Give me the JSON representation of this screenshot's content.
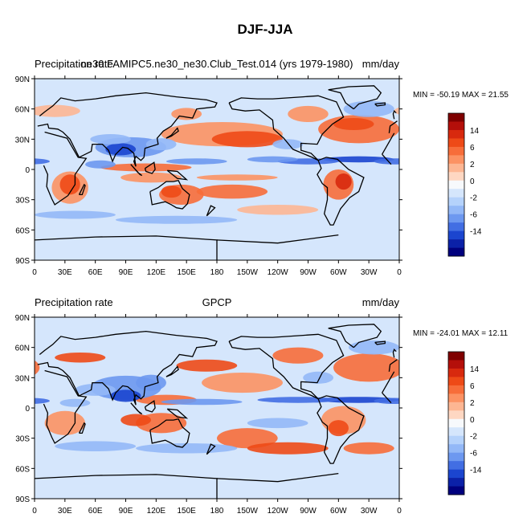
{
  "figure": {
    "title": "DJF-JJA"
  },
  "chart_data": [
    {
      "type": "heatmap",
      "left_title": "Precipitation rate",
      "center_title": "ne30 FAMIPC5.ne30_ne30.Club_Test.014 (yrs 1979-1980)",
      "units": "mm/day",
      "min_max_text": "MIN = -50.19 MAX =  21.55",
      "x_ticks": [
        "0",
        "30E",
        "60E",
        "90E",
        "120E",
        "150E",
        "180",
        "150W",
        "120W",
        "90W",
        "60W",
        "30W",
        "0"
      ],
      "y_ticks": [
        "90N",
        "60N",
        "30N",
        "0",
        "30S",
        "60S",
        "90S"
      ],
      "colorbar_labels": [
        "14",
        "6",
        "2",
        "0",
        "-2",
        "-6",
        "-14"
      ]
    },
    {
      "type": "heatmap",
      "left_title": "Precipitation rate",
      "center_title": "GPCP",
      "units": "mm/day",
      "min_max_text": "MIN = -24.01 MAX =  12.11",
      "x_ticks": [
        "0",
        "30E",
        "60E",
        "90E",
        "120E",
        "150E",
        "180",
        "150W",
        "120W",
        "90W",
        "60W",
        "30W",
        "0"
      ],
      "y_ticks": [
        "90N",
        "60N",
        "30N",
        "0",
        "30S",
        "60S",
        "90S"
      ],
      "colorbar_labels": [
        "14",
        "6",
        "2",
        "0",
        "-2",
        "-6",
        "-14"
      ]
    }
  ],
  "colors": {
    "palette": [
      "#7f0000",
      "#b40f0a",
      "#d8290e",
      "#ee4a17",
      "#f76d3a",
      "#fc9263",
      "#fdb693",
      "#fed7c2",
      "#f7f9fc",
      "#d5e6fc",
      "#b5d2fb",
      "#93b8f7",
      "#6d98f0",
      "#426ee3",
      "#1b45cf",
      "#0b21a8",
      "#00007e"
    ]
  }
}
